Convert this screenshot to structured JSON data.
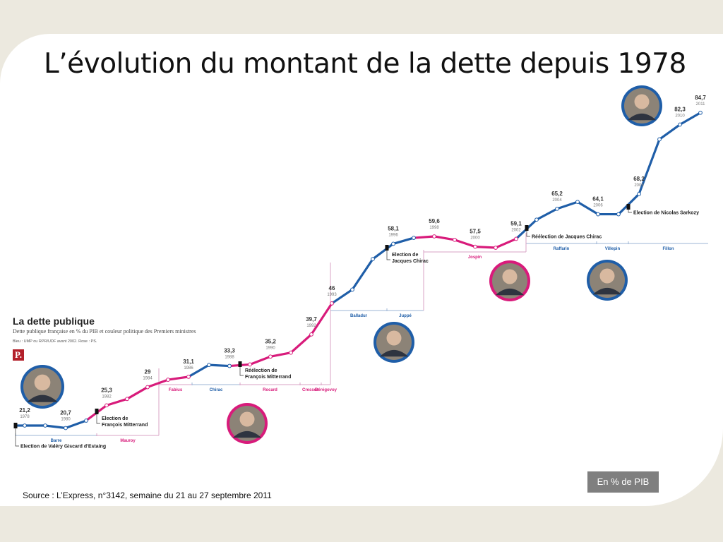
{
  "slide": {
    "title": "L’évolution du montant de la dette depuis 1978",
    "source": "Source : L’Express, n°3142, semaine du 21 au 27 septembre 2011",
    "unit_box": "En % de PIB"
  },
  "chart_data": {
    "type": "line",
    "title": "La dette publique",
    "subtitle": "Dette publique française en % du PIB et couleur politique des Premiers ministres",
    "legend_note": "Bleu : UMP ou RPR/UDF avant 2002. Rose : PS.",
    "logo_text": "P.",
    "colors": {
      "right": "#1f5ea8",
      "left": "#d81b7b",
      "bracket_right": "#9db6d6",
      "bracket_left": "#d9a3c4"
    },
    "x": [
      1978,
      1979,
      1980,
      1981,
      1982,
      1983,
      1984,
      1985,
      1986,
      1987,
      1988,
      1989,
      1990,
      1991,
      1992,
      1993,
      1994,
      1995,
      1996,
      1997,
      1998,
      1999,
      2000,
      2001,
      2002,
      2003,
      2004,
      2005,
      2006,
      2007,
      2008,
      2009,
      2010,
      2011
    ],
    "y": [
      21.2,
      21.2,
      20.7,
      22.2,
      25.3,
      26.6,
      29,
      30.5,
      31.1,
      33.5,
      33.3,
      33.6,
      35.2,
      36.0,
      39.7,
      46,
      48.8,
      55.0,
      58.1,
      59.3,
      59.6,
      58.9,
      57.5,
      57.3,
      59.1,
      63.0,
      65.2,
      66.6,
      64.1,
      64.1,
      68.2,
      79.3,
      82.3,
      84.7
    ],
    "labeled_points": [
      {
        "value": "21,2",
        "year": "1978"
      },
      {
        "value": "20,7",
        "year": "1980"
      },
      {
        "value": "25,3",
        "year": "1982"
      },
      {
        "value": "29",
        "year": "1984"
      },
      {
        "value": "31,1",
        "year": "1986"
      },
      {
        "value": "33,3",
        "year": "1988"
      },
      {
        "value": "35,2",
        "year": "1990"
      },
      {
        "value": "39,7",
        "year": "1992"
      },
      {
        "value": "46",
        "year": "1993"
      },
      {
        "value": "58,1",
        "year": "1996"
      },
      {
        "value": "59,6",
        "year": "1998"
      },
      {
        "value": "57,5",
        "year": "2000"
      },
      {
        "value": "59,1",
        "year": "2002"
      },
      {
        "value": "65,2",
        "year": "2004"
      },
      {
        "value": "64,1",
        "year": "2006"
      },
      {
        "value": "68,2",
        "year": "2008"
      },
      {
        "value": "82,3",
        "year": "2010"
      },
      {
        "value": "84,7",
        "year": "2011"
      }
    ],
    "party_periods": [
      {
        "from": 1978,
        "to": 1981.5,
        "party": "right"
      },
      {
        "from": 1981.5,
        "to": 1986.2,
        "party": "left"
      },
      {
        "from": 1986.2,
        "to": 1988.5,
        "party": "right"
      },
      {
        "from": 1988.5,
        "to": 1993.2,
        "party": "left"
      },
      {
        "from": 1993.2,
        "to": 1997.4,
        "party": "right"
      },
      {
        "from": 1997.4,
        "to": 2002.5,
        "party": "left"
      },
      {
        "from": 2002.5,
        "to": 2011,
        "party": "right"
      }
    ],
    "prime_ministers": [
      {
        "name": "Barre",
        "party": "right"
      },
      {
        "name": "Mauroy",
        "party": "left"
      },
      {
        "name": "Fabius",
        "party": "left"
      },
      {
        "name": "Chirac",
        "party": "right"
      },
      {
        "name": "Rocard",
        "party": "left"
      },
      {
        "name": "Cresson",
        "party": "left"
      },
      {
        "name": "Bérégovoy",
        "party": "left"
      },
      {
        "name": "Balladur",
        "party": "right"
      },
      {
        "name": "Juppé",
        "party": "right"
      },
      {
        "name": "Jospin",
        "party": "left"
      },
      {
        "name": "Raffarin",
        "party": "right"
      },
      {
        "name": "Villepin",
        "party": "right"
      },
      {
        "name": "Fillon",
        "party": "right"
      }
    ],
    "events": [
      {
        "label": "Election de Valéry Giscard d'Estaing"
      },
      {
        "label": "Election de François Mitterrand"
      },
      {
        "label": "Réélection de François Mitterrand"
      },
      {
        "label": "Election de Jacques Chirac"
      },
      {
        "label": "Réélection de Jacques Chirac"
      },
      {
        "label": "Election de Nicolas Sarkozy"
      }
    ],
    "portraits": [
      {
        "party": "right"
      },
      {
        "party": "left"
      },
      {
        "party": "right"
      },
      {
        "party": "left"
      },
      {
        "party": "right"
      },
      {
        "party": "right"
      }
    ]
  }
}
